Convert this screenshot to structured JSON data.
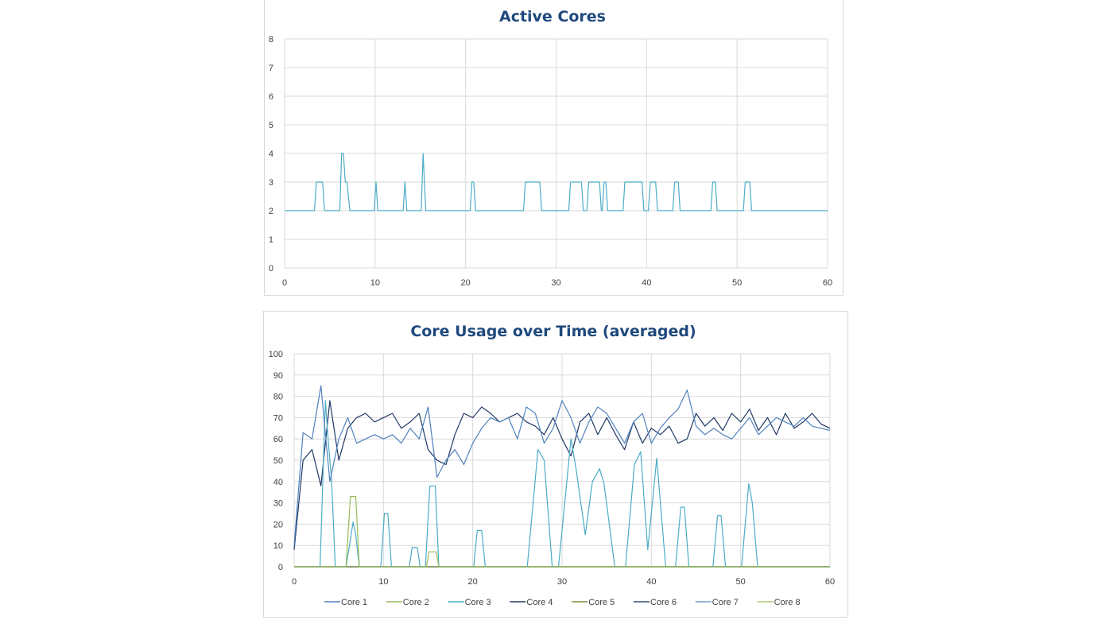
{
  "chart_data": [
    {
      "type": "line",
      "title": "Active Cores",
      "xlabel": "",
      "ylabel": "",
      "xlim": [
        0,
        60
      ],
      "ylim": [
        0,
        8
      ],
      "xticks": [
        0,
        10,
        20,
        30,
        40,
        50,
        60
      ],
      "yticks": [
        0,
        1,
        2,
        3,
        4,
        5,
        6,
        7,
        8
      ],
      "grid": true,
      "legend": "none",
      "series": [
        {
          "name": "Active Cores",
          "color": "#4BACC6",
          "points": [
            [
              0,
              2
            ],
            [
              3.3,
              2
            ],
            [
              3.5,
              3
            ],
            [
              4.2,
              3
            ],
            [
              4.4,
              2
            ],
            [
              6.1,
              2
            ],
            [
              6.3,
              4
            ],
            [
              6.5,
              4
            ],
            [
              6.7,
              3
            ],
            [
              6.9,
              3
            ],
            [
              7.2,
              2
            ],
            [
              9.9,
              2
            ],
            [
              10.1,
              3
            ],
            [
              10.3,
              2
            ],
            [
              13.1,
              2
            ],
            [
              13.3,
              3
            ],
            [
              13.5,
              2
            ],
            [
              15.1,
              2
            ],
            [
              15.3,
              4
            ],
            [
              15.6,
              2
            ],
            [
              20.5,
              2
            ],
            [
              20.7,
              3
            ],
            [
              20.9,
              3
            ],
            [
              21.1,
              2
            ],
            [
              26.4,
              2
            ],
            [
              26.6,
              3
            ],
            [
              28.2,
              3
            ],
            [
              28.4,
              2
            ],
            [
              31.4,
              2
            ],
            [
              31.6,
              3
            ],
            [
              32.8,
              3
            ],
            [
              33,
              2
            ],
            [
              33.4,
              2
            ],
            [
              33.6,
              3
            ],
            [
              34.8,
              3
            ],
            [
              35,
              2
            ],
            [
              35.1,
              2
            ],
            [
              35.3,
              3
            ],
            [
              35.5,
              3
            ],
            [
              35.7,
              2
            ],
            [
              37.4,
              2
            ],
            [
              37.6,
              3
            ],
            [
              39.5,
              3
            ],
            [
              39.7,
              2
            ],
            [
              40.2,
              2
            ],
            [
              40.4,
              3
            ],
            [
              41,
              3
            ],
            [
              41.2,
              2
            ],
            [
              42.9,
              2
            ],
            [
              43.1,
              3
            ],
            [
              43.5,
              3
            ],
            [
              43.7,
              2
            ],
            [
              47.1,
              2
            ],
            [
              47.3,
              3
            ],
            [
              47.6,
              3
            ],
            [
              47.8,
              2
            ],
            [
              50.7,
              2
            ],
            [
              50.9,
              3
            ],
            [
              51.4,
              3
            ],
            [
              51.6,
              2
            ],
            [
              60,
              2
            ]
          ]
        }
      ]
    },
    {
      "type": "line",
      "title": "Core Usage over Time (averaged)",
      "xlabel": "",
      "ylabel": "",
      "xlim": [
        0,
        60
      ],
      "ylim": [
        0,
        100
      ],
      "xticks": [
        0,
        10,
        20,
        30,
        40,
        50,
        60
      ],
      "yticks": [
        0,
        10,
        20,
        30,
        40,
        50,
        60,
        70,
        80,
        90,
        100
      ],
      "grid": true,
      "legend": "bottom",
      "series": [
        {
          "name": "Core 1",
          "color": "#4F81BD",
          "values": [
            10,
            63,
            60,
            85,
            40,
            60,
            70,
            58,
            60,
            62,
            60,
            62,
            58,
            65,
            60,
            75,
            42,
            50,
            55,
            48,
            58,
            65,
            70,
            68,
            70,
            60,
            75,
            72,
            58,
            65,
            78,
            70,
            58,
            68,
            75,
            72,
            65,
            58,
            68,
            72,
            58,
            65,
            70,
            74,
            83,
            66,
            62,
            65,
            62,
            60,
            65,
            70,
            62,
            66,
            70,
            68,
            66,
            70,
            66,
            65,
            64
          ]
        },
        {
          "name": "Core 2",
          "color": "#9BBB59",
          "points": [
            [
              0,
              0
            ],
            [
              5.8,
              0
            ],
            [
              6.3,
              33
            ],
            [
              6.9,
              33
            ],
            [
              7.3,
              0
            ],
            [
              14.8,
              0
            ],
            [
              15.1,
              7
            ],
            [
              15.9,
              7
            ],
            [
              16.2,
              0
            ],
            [
              60,
              0
            ]
          ]
        },
        {
          "name": "Core 3",
          "color": "#4BACC6",
          "points": [
            [
              0,
              0
            ],
            [
              2.9,
              0
            ],
            [
              3.5,
              78
            ],
            [
              3.8,
              60
            ],
            [
              4.2,
              40
            ],
            [
              4.6,
              0
            ],
            [
              5.8,
              0
            ],
            [
              6.2,
              10
            ],
            [
              6.6,
              21
            ],
            [
              6.9,
              15
            ],
            [
              7.3,
              0
            ],
            [
              9.7,
              0
            ],
            [
              10.1,
              25
            ],
            [
              10.5,
              25
            ],
            [
              10.9,
              0
            ],
            [
              12.9,
              0
            ],
            [
              13.2,
              9
            ],
            [
              13.8,
              9
            ],
            [
              14.1,
              0
            ],
            [
              14.7,
              0
            ],
            [
              15.2,
              38
            ],
            [
              15.8,
              38
            ],
            [
              16.2,
              0
            ],
            [
              20.1,
              0
            ],
            [
              20.5,
              17
            ],
            [
              21,
              17
            ],
            [
              21.4,
              0
            ],
            [
              26.1,
              0
            ],
            [
              27.3,
              55
            ],
            [
              28,
              50
            ],
            [
              28.9,
              0
            ],
            [
              29.6,
              0
            ],
            [
              31,
              60
            ],
            [
              31.6,
              45
            ],
            [
              32.6,
              15
            ],
            [
              33.4,
              40
            ],
            [
              34.2,
              46
            ],
            [
              34.7,
              39
            ],
            [
              35.9,
              0
            ],
            [
              37.1,
              0
            ],
            [
              38.1,
              48
            ],
            [
              38.8,
              54
            ],
            [
              39.6,
              8
            ],
            [
              40.6,
              51
            ],
            [
              41.6,
              0
            ],
            [
              42.7,
              0
            ],
            [
              43.3,
              28
            ],
            [
              43.7,
              28
            ],
            [
              44.2,
              0
            ],
            [
              46.9,
              0
            ],
            [
              47.4,
              24
            ],
            [
              47.8,
              24
            ],
            [
              48.3,
              0
            ],
            [
              50.1,
              0
            ],
            [
              50.9,
              39
            ],
            [
              51.3,
              30
            ],
            [
              51.9,
              0
            ],
            [
              60,
              0
            ]
          ]
        },
        {
          "name": "Core 4",
          "color": "#1F3864",
          "values": [
            8,
            50,
            55,
            38,
            78,
            50,
            65,
            70,
            72,
            68,
            70,
            72,
            65,
            68,
            72,
            55,
            50,
            48,
            62,
            72,
            70,
            75,
            72,
            68,
            70,
            72,
            68,
            66,
            62,
            70,
            60,
            52,
            68,
            72,
            62,
            70,
            62,
            55,
            68,
            58,
            65,
            62,
            66,
            58,
            60,
            72,
            66,
            70,
            64,
            72,
            68,
            74,
            64,
            70,
            62,
            72,
            65,
            68,
            72,
            67,
            65
          ]
        },
        {
          "name": "Core 5",
          "color": "#7F8F3C",
          "points": [
            [
              0,
              0
            ],
            [
              60,
              0
            ]
          ]
        },
        {
          "name": "Core 6",
          "color": "#2C4D75",
          "points": [
            [
              0,
              0
            ],
            [
              60,
              0
            ]
          ]
        },
        {
          "name": "Core 7",
          "color": "#729ACA",
          "points": [
            [
              0,
              0
            ],
            [
              60,
              0
            ]
          ]
        },
        {
          "name": "Core 8",
          "color": "#AFC97A",
          "points": [
            [
              0,
              0
            ],
            [
              60,
              0
            ]
          ]
        }
      ]
    }
  ]
}
